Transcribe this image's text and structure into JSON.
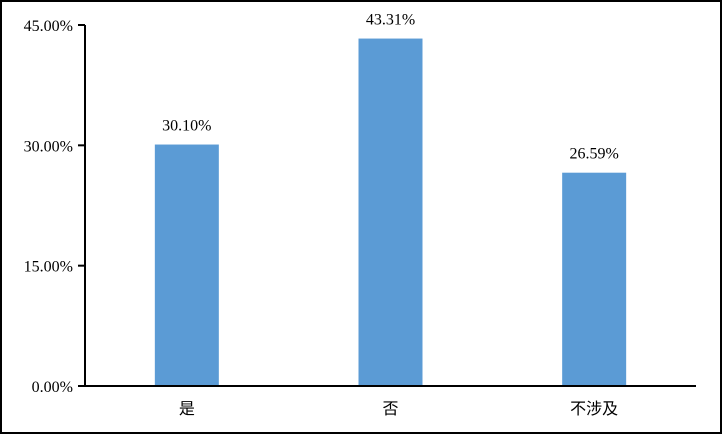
{
  "chart_data": {
    "type": "bar",
    "categories": [
      "是",
      "否",
      "不涉及"
    ],
    "values": [
      30.1,
      43.31,
      26.59
    ],
    "data_labels": [
      "30.10%",
      "43.31%",
      "26.59%"
    ],
    "title": "",
    "xlabel": "",
    "ylabel": "",
    "ylim": [
      0,
      45
    ],
    "yticks": [
      0,
      15,
      30,
      45
    ],
    "ytick_labels": [
      "0.00%",
      "15.00%",
      "30.00%",
      "45.00%"
    ],
    "grid": false,
    "legend": "none",
    "bar_color": "#5B9BD5"
  }
}
